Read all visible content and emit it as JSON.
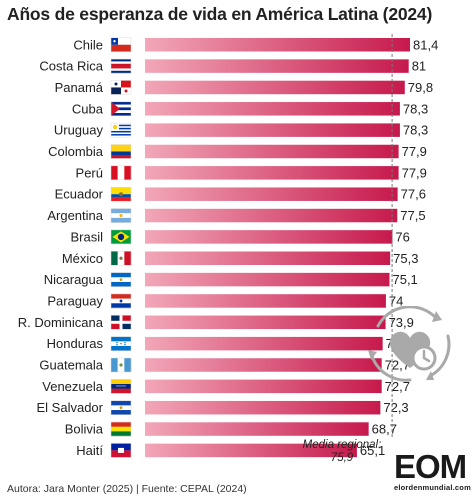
{
  "title": "Años de esperanza de vida en América Latina (2024)",
  "footer": "Autora: Jara Monter (2025) | Fuente: CEPAL (2024)",
  "logo": {
    "mark": "EOM",
    "sub": "elordenmundial.com"
  },
  "reference": {
    "label": "Media regional:",
    "value_text": "75,9",
    "value": 75.9
  },
  "colors": {
    "bar_start": "#f2a7b8",
    "bar_end": "#c6194c",
    "refline": "#777777",
    "icon": "#a9a9a9"
  },
  "icons": {
    "heart_clock": "heart-clock-cycle-icon"
  },
  "chart_data": {
    "type": "bar",
    "orientation": "horizontal",
    "title": "Años de esperanza de vida en América Latina (2024)",
    "categories": [
      "Chile",
      "Costa Rica",
      "Panamá",
      "Cuba",
      "Uruguay",
      "Colombia",
      "Perú",
      "Ecuador",
      "Argentina",
      "Brasil",
      "México",
      "Nicaragua",
      "Paraguay",
      "R. Dominicana",
      "Honduras",
      "Guatemala",
      "Venezuela",
      "El Salvador",
      "Bolivia",
      "Haití"
    ],
    "values": [
      81.4,
      81,
      79.8,
      78.3,
      78.3,
      77.9,
      77.9,
      77.6,
      77.5,
      76,
      75.3,
      75.1,
      74,
      73.9,
      73,
      72.7,
      72.7,
      72.3,
      68.7,
      65.1
    ],
    "value_labels": [
      "81,4",
      "81",
      "79,8",
      "78,3",
      "78,3",
      "77,9",
      "77,9",
      "77,6",
      "77,5",
      "76",
      "75,3",
      "75,1",
      "74",
      "73,9",
      "73",
      "72,7",
      "72,7",
      "72,3",
      "68,7",
      "65,1"
    ],
    "flags": [
      "flag-chile",
      "flag-costa-rica",
      "flag-panama",
      "flag-cuba",
      "flag-uruguay",
      "flag-colombia",
      "flag-peru",
      "flag-ecuador",
      "flag-argentina",
      "flag-brasil",
      "flag-mexico",
      "flag-nicaragua",
      "flag-paraguay",
      "flag-dominican-republic",
      "flag-honduras",
      "flag-guatemala",
      "flag-venezuela",
      "flag-el-salvador",
      "flag-bolivia",
      "flag-haiti"
    ],
    "xlabel": "",
    "ylabel": "",
    "grid": false,
    "legend": "none"
  }
}
